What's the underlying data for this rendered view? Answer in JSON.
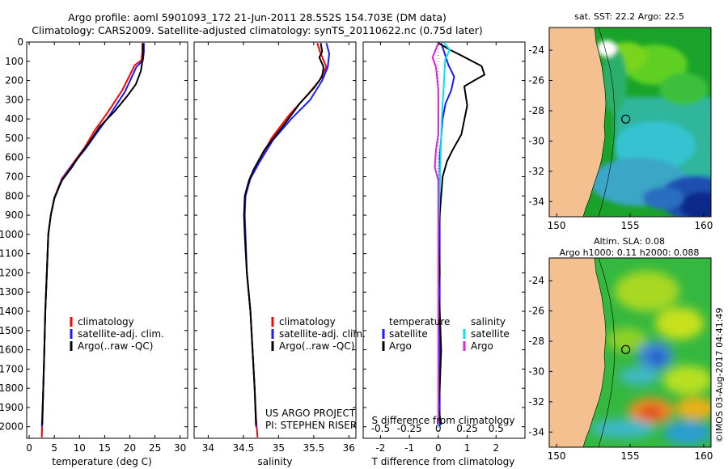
{
  "title": {
    "line1": "Argo profile: aoml 5901093_172 21-Jun-2011 28.552S 154.703E (DM data)",
    "line2": "Climatology: CARS2009. Satellite-adjusted climatology: synTS_20110622.nc (0.75d later)"
  },
  "colors": {
    "climatology": "#ff0000",
    "satellite": "#1a1aff",
    "argo": "#000000",
    "sat_s": "#00e5ee",
    "argo_s": "#e020e0",
    "land": "#f4c08f"
  },
  "depth_axis": {
    "ylim": [
      0,
      2060
    ],
    "ticks": [
      "0",
      "100",
      "200",
      "300",
      "400",
      "500",
      "600",
      "700",
      "800",
      "900",
      "1000",
      "1100",
      "1200",
      "1300",
      "1400",
      "1500",
      "1600",
      "1700",
      "1800",
      "1900",
      "2000"
    ]
  },
  "chart_data": [
    {
      "type": "line",
      "name": "temperature-profile",
      "xlabel": "temperature (deg C)",
      "xlim": [
        -0.5,
        31.5
      ],
      "xticks": [
        "0",
        "5",
        "10",
        "15",
        "20",
        "25",
        "30"
      ],
      "xtick_values": [
        0,
        5,
        10,
        15,
        20,
        25,
        30
      ],
      "legend": [
        "climatology",
        "satellite-adj. clim.",
        "Argo(..raw -QC)"
      ],
      "series": [
        {
          "name": "climatology",
          "color": "climatology",
          "points": [
            [
              22.5,
              5
            ],
            [
              22.5,
              50
            ],
            [
              22.3,
              95
            ],
            [
              21,
              120
            ],
            [
              18.5,
              250
            ],
            [
              15.5,
              370
            ],
            [
              13,
              460
            ],
            [
              11,
              550
            ],
            [
              9,
              620
            ],
            [
              6.5,
              710
            ],
            [
              5,
              810
            ],
            [
              4.3,
              900
            ],
            [
              3.8,
              1000
            ],
            [
              3.5,
              1200
            ],
            [
              3.2,
              1400
            ],
            [
              3,
              1600
            ],
            [
              2.8,
              1800
            ],
            [
              2.5,
              2055
            ]
          ]
        },
        {
          "name": "satellite-adj. clim.",
          "color": "satellite",
          "points": [
            [
              22.8,
              5
            ],
            [
              22.8,
              50
            ],
            [
              22.6,
              95
            ],
            [
              21.3,
              130
            ],
            [
              19,
              260
            ],
            [
              16,
              380
            ],
            [
              13.5,
              470
            ],
            [
              11.2,
              555
            ],
            [
              9,
              625
            ],
            [
              6.5,
              715
            ],
            [
              5,
              815
            ],
            [
              4.3,
              900
            ],
            [
              3.8,
              1000
            ],
            [
              3.5,
              1200
            ],
            [
              3.2,
              1400
            ],
            [
              3,
              1600
            ],
            [
              2.8,
              1800
            ],
            [
              2.5,
              2000
            ]
          ]
        },
        {
          "name": "Argo(..raw -QC)",
          "color": "argo",
          "points": [
            [
              22.6,
              5
            ],
            [
              22.6,
              80
            ],
            [
              22.2,
              150
            ],
            [
              21.2,
              220
            ],
            [
              19.5,
              280
            ],
            [
              17,
              360
            ],
            [
              14,
              440
            ],
            [
              12,
              520
            ],
            [
              10,
              590
            ],
            [
              8.5,
              650
            ],
            [
              6.5,
              720
            ],
            [
              5,
              810
            ],
            [
              4.3,
              900
            ],
            [
              3.8,
              1000
            ],
            [
              3.5,
              1200
            ],
            [
              3.2,
              1400
            ],
            [
              3,
              1600
            ],
            [
              2.8,
              1800
            ],
            [
              2.6,
              1990
            ]
          ]
        }
      ]
    },
    {
      "type": "line",
      "name": "salinity-profile",
      "xlabel": "salinity",
      "xlim": [
        33.8,
        36.1
      ],
      "xticks": [
        "34",
        "34.5",
        "35",
        "35.5",
        "36"
      ],
      "xtick_values": [
        34,
        34.5,
        35,
        35.5,
        36
      ],
      "legend": [
        "climatology",
        "satellite-adj. clim.",
        "Argo(..raw -QC)"
      ],
      "annotation": [
        "US ARGO PROJECT",
        "PI: STEPHEN RISER"
      ],
      "series": [
        {
          "name": "climatology",
          "color": "climatology",
          "points": [
            [
              35.55,
              5
            ],
            [
              35.6,
              60
            ],
            [
              35.68,
              130
            ],
            [
              35.58,
              200
            ],
            [
              35.4,
              280
            ],
            [
              35.15,
              380
            ],
            [
              34.9,
              500
            ],
            [
              34.72,
              620
            ],
            [
              34.6,
              700
            ],
            [
              34.53,
              800
            ],
            [
              34.51,
              900
            ],
            [
              34.52,
              1000
            ],
            [
              34.55,
              1200
            ],
            [
              34.6,
              1400
            ],
            [
              34.63,
              1600
            ],
            [
              34.66,
              1800
            ],
            [
              34.68,
              1950
            ],
            [
              34.7,
              2055
            ]
          ]
        },
        {
          "name": "satellite-adj. clim.",
          "color": "satellite",
          "points": [
            [
              35.68,
              5
            ],
            [
              35.72,
              60
            ],
            [
              35.7,
              130
            ],
            [
              35.62,
              200
            ],
            [
              35.45,
              300
            ],
            [
              35.18,
              400
            ],
            [
              34.92,
              510
            ],
            [
              34.72,
              630
            ],
            [
              34.6,
              710
            ],
            [
              34.53,
              800
            ],
            [
              34.52,
              900
            ],
            [
              34.53,
              1000
            ],
            [
              34.55,
              1200
            ],
            [
              34.6,
              1400
            ],
            [
              34.63,
              1600
            ],
            [
              34.66,
              1800
            ],
            [
              34.68,
              2000
            ]
          ]
        },
        {
          "name": "Argo(..raw -QC)",
          "color": "argo",
          "points": [
            [
              35.6,
              5
            ],
            [
              35.62,
              50
            ],
            [
              35.58,
              80
            ],
            [
              35.64,
              130
            ],
            [
              35.62,
              180
            ],
            [
              35.5,
              240
            ],
            [
              35.3,
              320
            ],
            [
              35.1,
              420
            ],
            [
              34.95,
              490
            ],
            [
              34.8,
              560
            ],
            [
              34.65,
              660
            ],
            [
              34.58,
              720
            ],
            [
              34.52,
              800
            ],
            [
              34.51,
              900
            ],
            [
              34.52,
              1000
            ],
            [
              34.55,
              1200
            ],
            [
              34.6,
              1400
            ],
            [
              34.63,
              1600
            ],
            [
              34.66,
              1800
            ],
            [
              34.68,
              1990
            ]
          ]
        }
      ]
    },
    {
      "type": "line",
      "name": "difference-from-climatology",
      "xlabel": "T difference from climatology",
      "xlabel_top": "S difference from climatology",
      "xlim": [
        -2.6,
        3.0
      ],
      "xticks": [
        "-2",
        "-1",
        "0",
        "1",
        "2"
      ],
      "xtick_values": [
        -2,
        -1,
        0,
        1,
        2
      ],
      "sticks": [
        "-0.5",
        "-0.25",
        "0",
        "0.25",
        "0.5"
      ],
      "stick_values": [
        -0.5,
        -0.25,
        0,
        0.25,
        0.5
      ],
      "legend_temperature": {
        "title": "temperature",
        "items": [
          "satellite",
          "Argo"
        ]
      },
      "legend_salinity": {
        "title": "salinity",
        "items": [
          "satellite",
          "Argo"
        ]
      },
      "series": [
        {
          "name": "T satellite",
          "color": "satellite",
          "axis": "T",
          "points": [
            [
              0.1,
              5
            ],
            [
              0.2,
              50
            ],
            [
              0.35,
              120
            ],
            [
              0.55,
              180
            ],
            [
              0.45,
              250
            ],
            [
              0.25,
              320
            ],
            [
              0.15,
              400
            ],
            [
              0.1,
              500
            ],
            [
              0.05,
              600
            ],
            [
              0.05,
              700
            ],
            [
              0.05,
              800
            ],
            [
              0.05,
              1000
            ],
            [
              0.05,
              1200
            ],
            [
              0.05,
              1400
            ],
            [
              0.05,
              1600
            ],
            [
              0.05,
              1800
            ],
            [
              0.05,
              2000
            ]
          ]
        },
        {
          "name": "T Argo",
          "color": "argo",
          "axis": "T",
          "points": [
            [
              0,
              5
            ],
            [
              0.4,
              40
            ],
            [
              0.8,
              70
            ],
            [
              1.5,
              125
            ],
            [
              1.6,
              170
            ],
            [
              1.3,
              195
            ],
            [
              0.9,
              230
            ],
            [
              1.0,
              330
            ],
            [
              0.8,
              480
            ],
            [
              0.5,
              560
            ],
            [
              0.3,
              620
            ],
            [
              0.15,
              700
            ],
            [
              0.1,
              800
            ],
            [
              0.05,
              900
            ],
            [
              0.0,
              1000
            ],
            [
              0.05,
              1200
            ],
            [
              0.0,
              1300
            ],
            [
              0.05,
              1400
            ],
            [
              0.1,
              1600
            ],
            [
              0.05,
              1800
            ],
            [
              0.0,
              1900
            ],
            [
              0.1,
              1990
            ]
          ]
        },
        {
          "name": "S satellite",
          "color": "sat_s",
          "axis": "S",
          "points": [
            [
              0.05,
              5
            ],
            [
              0.1,
              40
            ],
            [
              0.06,
              90
            ],
            [
              0.05,
              200
            ],
            [
              0.03,
              400
            ],
            [
              0.02,
              600
            ],
            [
              0.01,
              800
            ],
            [
              0.0,
              1000
            ],
            [
              0.0,
              1400
            ],
            [
              0.0,
              1800
            ],
            [
              0.0,
              2000
            ]
          ]
        },
        {
          "name": "S Argo",
          "color": "argo_s",
          "axis": "S",
          "points": [
            [
              0.0,
              5
            ],
            [
              -0.05,
              80
            ],
            [
              -0.02,
              130
            ],
            [
              0.0,
              250
            ],
            [
              0.0,
              480
            ],
            [
              -0.02,
              560
            ],
            [
              -0.03,
              650
            ],
            [
              0.0,
              720
            ],
            [
              0.0,
              900
            ],
            [
              0.0,
              1000
            ],
            [
              0.0,
              1400
            ],
            [
              0.0,
              1800
            ],
            [
              0.0,
              1990
            ]
          ]
        }
      ]
    },
    {
      "type": "heatmap",
      "name": "sst-map",
      "title": "sat. SST: 22.2  Argo: 22.5",
      "xlim": [
        149.5,
        160.5
      ],
      "ylim": [
        -35,
        -22.5
      ],
      "xticks": [
        "150",
        "155",
        "160"
      ],
      "xtick_values": [
        150,
        155,
        160
      ],
      "yticks": [
        "-24",
        "-26",
        "-28",
        "-30",
        "-32",
        "-34"
      ],
      "ytick_values": [
        -24,
        -26,
        -28,
        -30,
        -32,
        -34
      ],
      "float_position": [
        154.703,
        -28.552
      ]
    },
    {
      "type": "heatmap",
      "name": "sla-map",
      "title": [
        "Altim. SLA: 0.08",
        "Argo h1000: 0.11 h2000: 0.088"
      ],
      "xlim": [
        149.5,
        160.5
      ],
      "ylim": [
        -35,
        -22.5
      ],
      "xticks": [
        "150",
        "155",
        "160"
      ],
      "xtick_values": [
        150,
        155,
        160
      ],
      "yticks": [
        "-24",
        "-26",
        "-28",
        "-30",
        "-32",
        "-34"
      ],
      "ytick_values": [
        -24,
        -26,
        -28,
        -30,
        -32,
        -34
      ],
      "float_position": [
        154.703,
        -28.552
      ]
    }
  ],
  "credit": "©IMOS 03-Aug-2017 04:41:49"
}
